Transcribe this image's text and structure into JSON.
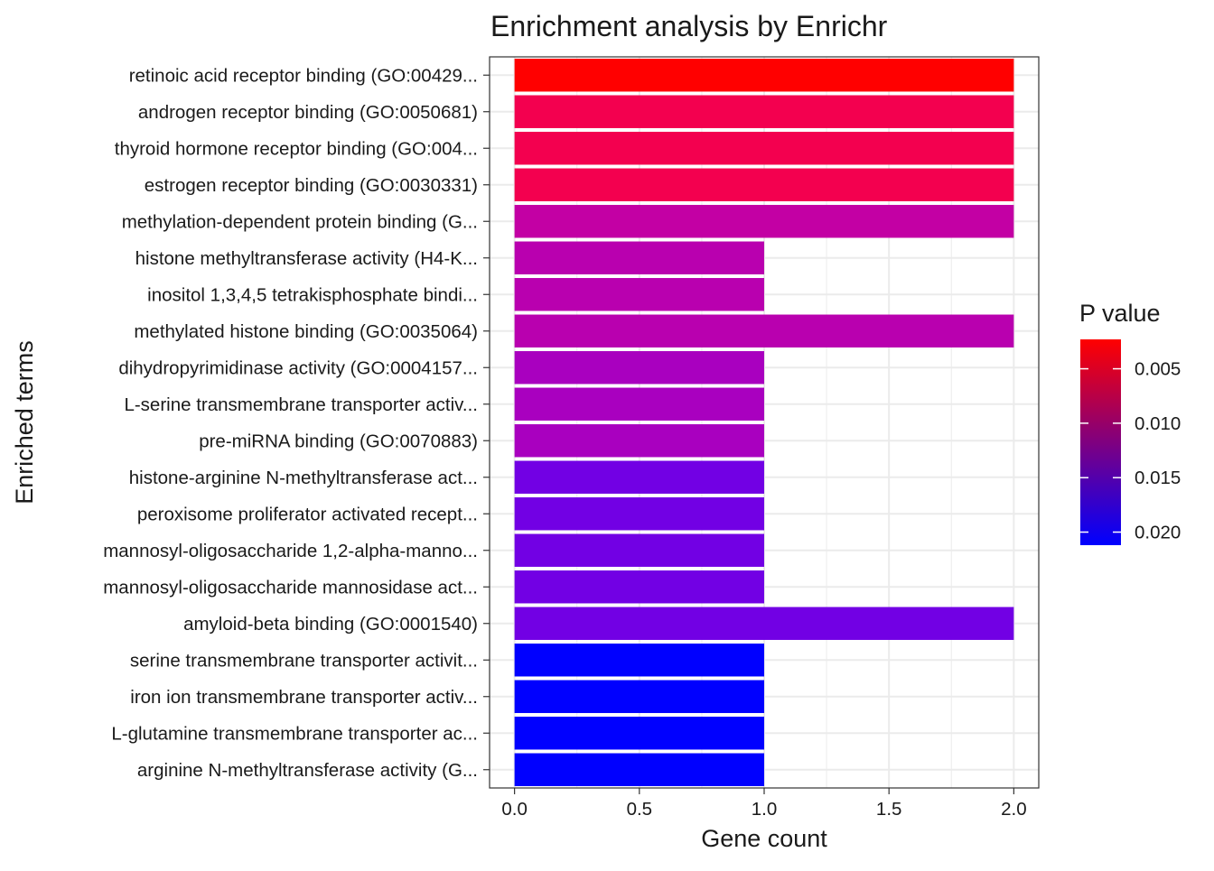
{
  "chart_data": {
    "type": "bar",
    "orientation": "horizontal",
    "title": "Enrichment analysis by Enrichr",
    "xlabel": "Gene count",
    "ylabel": "Enriched terms",
    "xlim": [
      -0.1,
      2.1
    ],
    "x_ticks": [
      0.0,
      0.5,
      1.0,
      1.5,
      2.0
    ],
    "x_tick_labels": [
      "0.0",
      "0.5",
      "1.0",
      "1.5",
      "2.0"
    ],
    "grid": true,
    "categories": [
      "retinoic acid receptor binding (GO:00429...",
      "androgen receptor binding (GO:0050681)",
      "thyroid hormone receptor binding (GO:004...",
      "estrogen receptor binding (GO:0030331)",
      "methylation-dependent protein binding (G...",
      "histone methyltransferase activity (H4-K...",
      "inositol 1,3,4,5 tetrakisphosphate bindi...",
      "methylated histone binding (GO:0035064)",
      "dihydropyrimidinase activity (GO:0004157...",
      "L-serine transmembrane transporter activ...",
      "pre-miRNA binding (GO:0070883)",
      "histone-arginine N-methyltransferase act...",
      "peroxisome proliferator activated recept...",
      "mannosyl-oligosaccharide 1,2-alpha-manno...",
      "mannosyl-oligosaccharide mannosidase act...",
      "amyloid-beta binding (GO:0001540)",
      "serine transmembrane transporter activit...",
      "iron ion transmembrane transporter activ...",
      "L-glutamine transmembrane transporter ac...",
      "arginine N-methyltransferase activity (G..."
    ],
    "values": [
      2,
      2,
      2,
      2,
      2,
      1,
      1,
      2,
      1,
      1,
      1,
      1,
      1,
      1,
      1,
      2,
      1,
      1,
      1,
      1
    ],
    "p_values": [
      0.0023,
      0.0041,
      0.0041,
      0.0041,
      0.0101,
      0.0112,
      0.0112,
      0.0112,
      0.0129,
      0.0129,
      0.0129,
      0.0174,
      0.0174,
      0.0174,
      0.0174,
      0.0174,
      0.0212,
      0.0212,
      0.0212,
      0.0212
    ],
    "legend": {
      "title": "P value",
      "position": "right",
      "ticks": [
        0.005,
        0.01,
        0.015,
        0.02
      ],
      "tick_labels": [
        "0.005",
        "0.010",
        "0.015",
        "0.020"
      ],
      "range": [
        0.0023,
        0.0212
      ],
      "color_low": "#ff0000",
      "color_high": "#0000ff"
    }
  }
}
